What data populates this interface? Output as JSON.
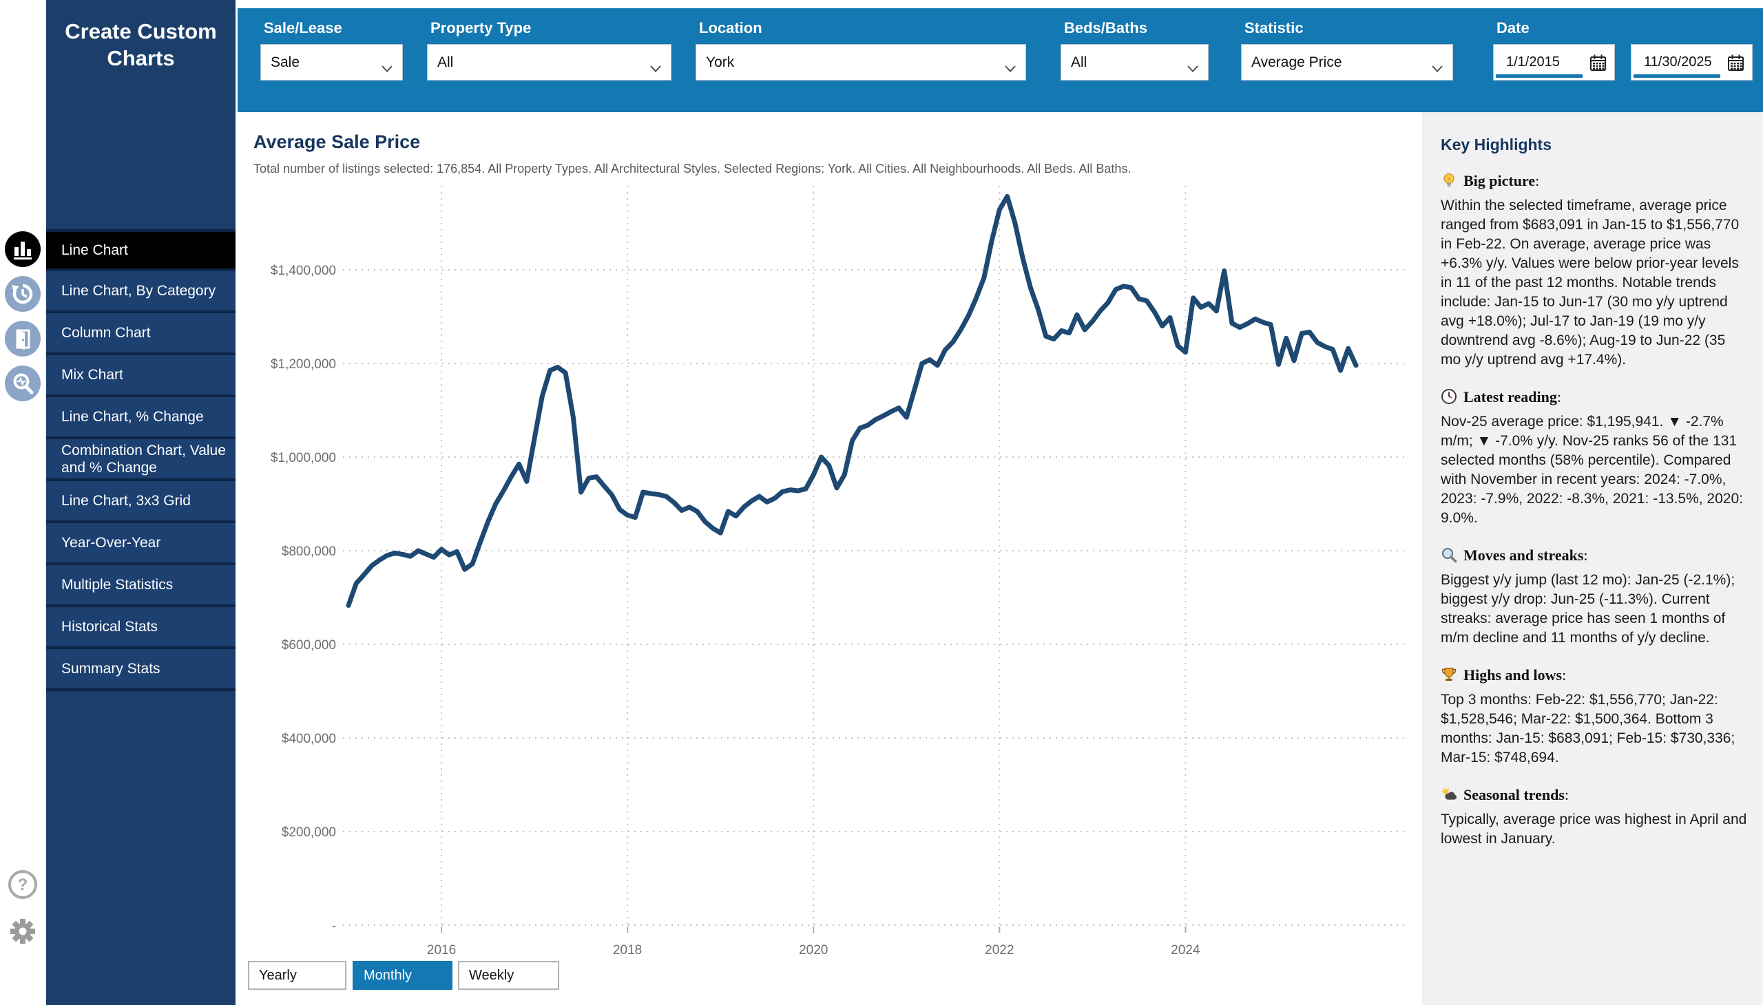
{
  "sidebar": {
    "title": "Create Custom Charts",
    "items": [
      {
        "label": "Line Chart",
        "active": true
      },
      {
        "label": "Line Chart, By Category",
        "active": false
      },
      {
        "label": "Column Chart",
        "active": false
      },
      {
        "label": "Mix Chart",
        "active": false
      },
      {
        "label": "Line Chart, % Change",
        "active": false
      },
      {
        "label": "Combination Chart, Value and % Change",
        "active": false
      },
      {
        "label": "Line Chart, 3x3 Grid",
        "active": false
      },
      {
        "label": "Year-Over-Year",
        "active": false
      },
      {
        "label": "Multiple Statistics",
        "active": false
      },
      {
        "label": "Historical Stats",
        "active": false
      },
      {
        "label": "Summary Stats",
        "active": false
      }
    ]
  },
  "icon_rail": {
    "items": [
      {
        "name": "bar-chart-icon",
        "active": true
      },
      {
        "name": "history-icon",
        "active": false
      },
      {
        "name": "door-icon",
        "active": false
      },
      {
        "name": "search-pulse-icon",
        "active": false
      }
    ],
    "footer": [
      {
        "name": "help-icon"
      },
      {
        "name": "settings-gear-icon"
      }
    ]
  },
  "filters": [
    {
      "label": "Sale/Lease",
      "value": "Sale"
    },
    {
      "label": "Property Type",
      "value": "All"
    },
    {
      "label": "Location",
      "value": "York"
    },
    {
      "label": "Beds/Baths",
      "value": "All"
    },
    {
      "label": "Statistic",
      "value": "Average Price"
    },
    {
      "label": "Date",
      "from": "1/1/2015",
      "to": "11/30/2025"
    }
  ],
  "chart": {
    "title": "Average Sale Price",
    "subtitle": "Total number of listings selected: 176,854. All Property Types. All Architectural Styles. Selected Regions: York. All Cities. All Neighbourhoods. All Beds. All Baths."
  },
  "granularity": {
    "options": [
      "Yearly",
      "Monthly",
      "Weekly"
    ],
    "selected": "Monthly"
  },
  "chart_data": {
    "type": "line",
    "title": "Average Sale Price",
    "x_start": "Jan-2015",
    "x_end": "Nov-2025",
    "n_months": 131,
    "x_tick_labels": [
      "2016",
      "2018",
      "2020",
      "2022",
      "2024"
    ],
    "x_tick_month_index": [
      12,
      36,
      60,
      84,
      108
    ],
    "y_tick_labels": [
      "$1,400,000",
      "$1,200,000",
      "$1,000,000",
      "$800,000",
      "$600,000",
      "$400,000",
      "$200,000",
      "-"
    ],
    "ylim": [
      0,
      1600000
    ],
    "grid": "dotted",
    "legend": "none",
    "line_color": "#1d4973",
    "values": [
      683091,
      730336,
      748694,
      768000,
      780000,
      790000,
      795000,
      792000,
      788000,
      800000,
      793000,
      786000,
      803000,
      791000,
      798000,
      760000,
      772000,
      818000,
      862000,
      900000,
      928000,
      958000,
      985000,
      948000,
      1040000,
      1130000,
      1185000,
      1192000,
      1180000,
      1085000,
      925000,
      955000,
      958000,
      938000,
      919000,
      888000,
      876000,
      871000,
      925000,
      922000,
      920000,
      916000,
      903000,
      886000,
      893000,
      884000,
      862000,
      848000,
      838000,
      884000,
      874000,
      893000,
      906000,
      916000,
      904000,
      912000,
      926000,
      930000,
      928000,
      932000,
      962000,
      1000000,
      982000,
      934000,
      962000,
      1035000,
      1062000,
      1068000,
      1080000,
      1088000,
      1097000,
      1105000,
      1085000,
      1142000,
      1200000,
      1208000,
      1196000,
      1229000,
      1246000,
      1272000,
      1302000,
      1340000,
      1383000,
      1462000,
      1528546,
      1556770,
      1500364,
      1425000,
      1362000,
      1315000,
      1258000,
      1252000,
      1270000,
      1265000,
      1304000,
      1272000,
      1290000,
      1312000,
      1330000,
      1358000,
      1365000,
      1362000,
      1338000,
      1334000,
      1310000,
      1280000,
      1298000,
      1238000,
      1224000,
      1340000,
      1320000,
      1328000,
      1312000,
      1398000,
      1286000,
      1277000,
      1285000,
      1295000,
      1288000,
      1283000,
      1198000,
      1254000,
      1206000,
      1264000,
      1267000,
      1245000,
      1236000,
      1230000,
      1185000,
      1232000,
      1195941
    ]
  },
  "highlights": {
    "title": "Key Highlights",
    "sections": [
      {
        "icon": "lightbulb-icon",
        "heading": "Big picture",
        "body": "Within the selected timeframe, average price ranged from $683,091 in Jan-15 to $1,556,770 in Feb-22. On average, average price was +6.3% y/y. Values were below prior-year levels in 11 of the past 12 months. Notable trends include: Jan-15 to Jun-17 (30 mo y/y uptrend avg +18.0%); Jul-17 to Jan-19 (19 mo y/y downtrend avg -8.6%); Aug-19 to Jun-22 (35 mo y/y uptrend avg +17.4%)."
      },
      {
        "icon": "clock-icon",
        "heading": "Latest reading",
        "body": "Nov-25 average price: $1,195,941. ▼ -2.7% m/m; ▼ -7.0% y/y. Nov-25 ranks 56 of the 131 selected months (58% percentile). Compared with November in recent years: 2024: -7.0%, 2023: -7.9%, 2022: -8.3%, 2021: -13.5%, 2020: 9.0%."
      },
      {
        "icon": "magnifier-icon",
        "heading": "Moves and streaks",
        "body": "Biggest y/y jump (last 12 mo): Jan-25 (-2.1%); biggest y/y drop: Jun-25 (-11.3%). Current streaks: average price has seen 1 months of m/m decline and 11 months of y/y decline."
      },
      {
        "icon": "trophy-icon",
        "heading": "Highs and lows",
        "body": "Top 3 months: Feb-22: $1,556,770; Jan-22: $1,528,546; Mar-22: $1,500,364. Bottom 3 months: Jan-15: $683,091; Feb-15: $730,336; Mar-15: $748,694."
      },
      {
        "icon": "sun-cloud-icon",
        "heading": "Seasonal trends",
        "body": "Typically, average price was highest in April and lowest in January."
      }
    ]
  }
}
